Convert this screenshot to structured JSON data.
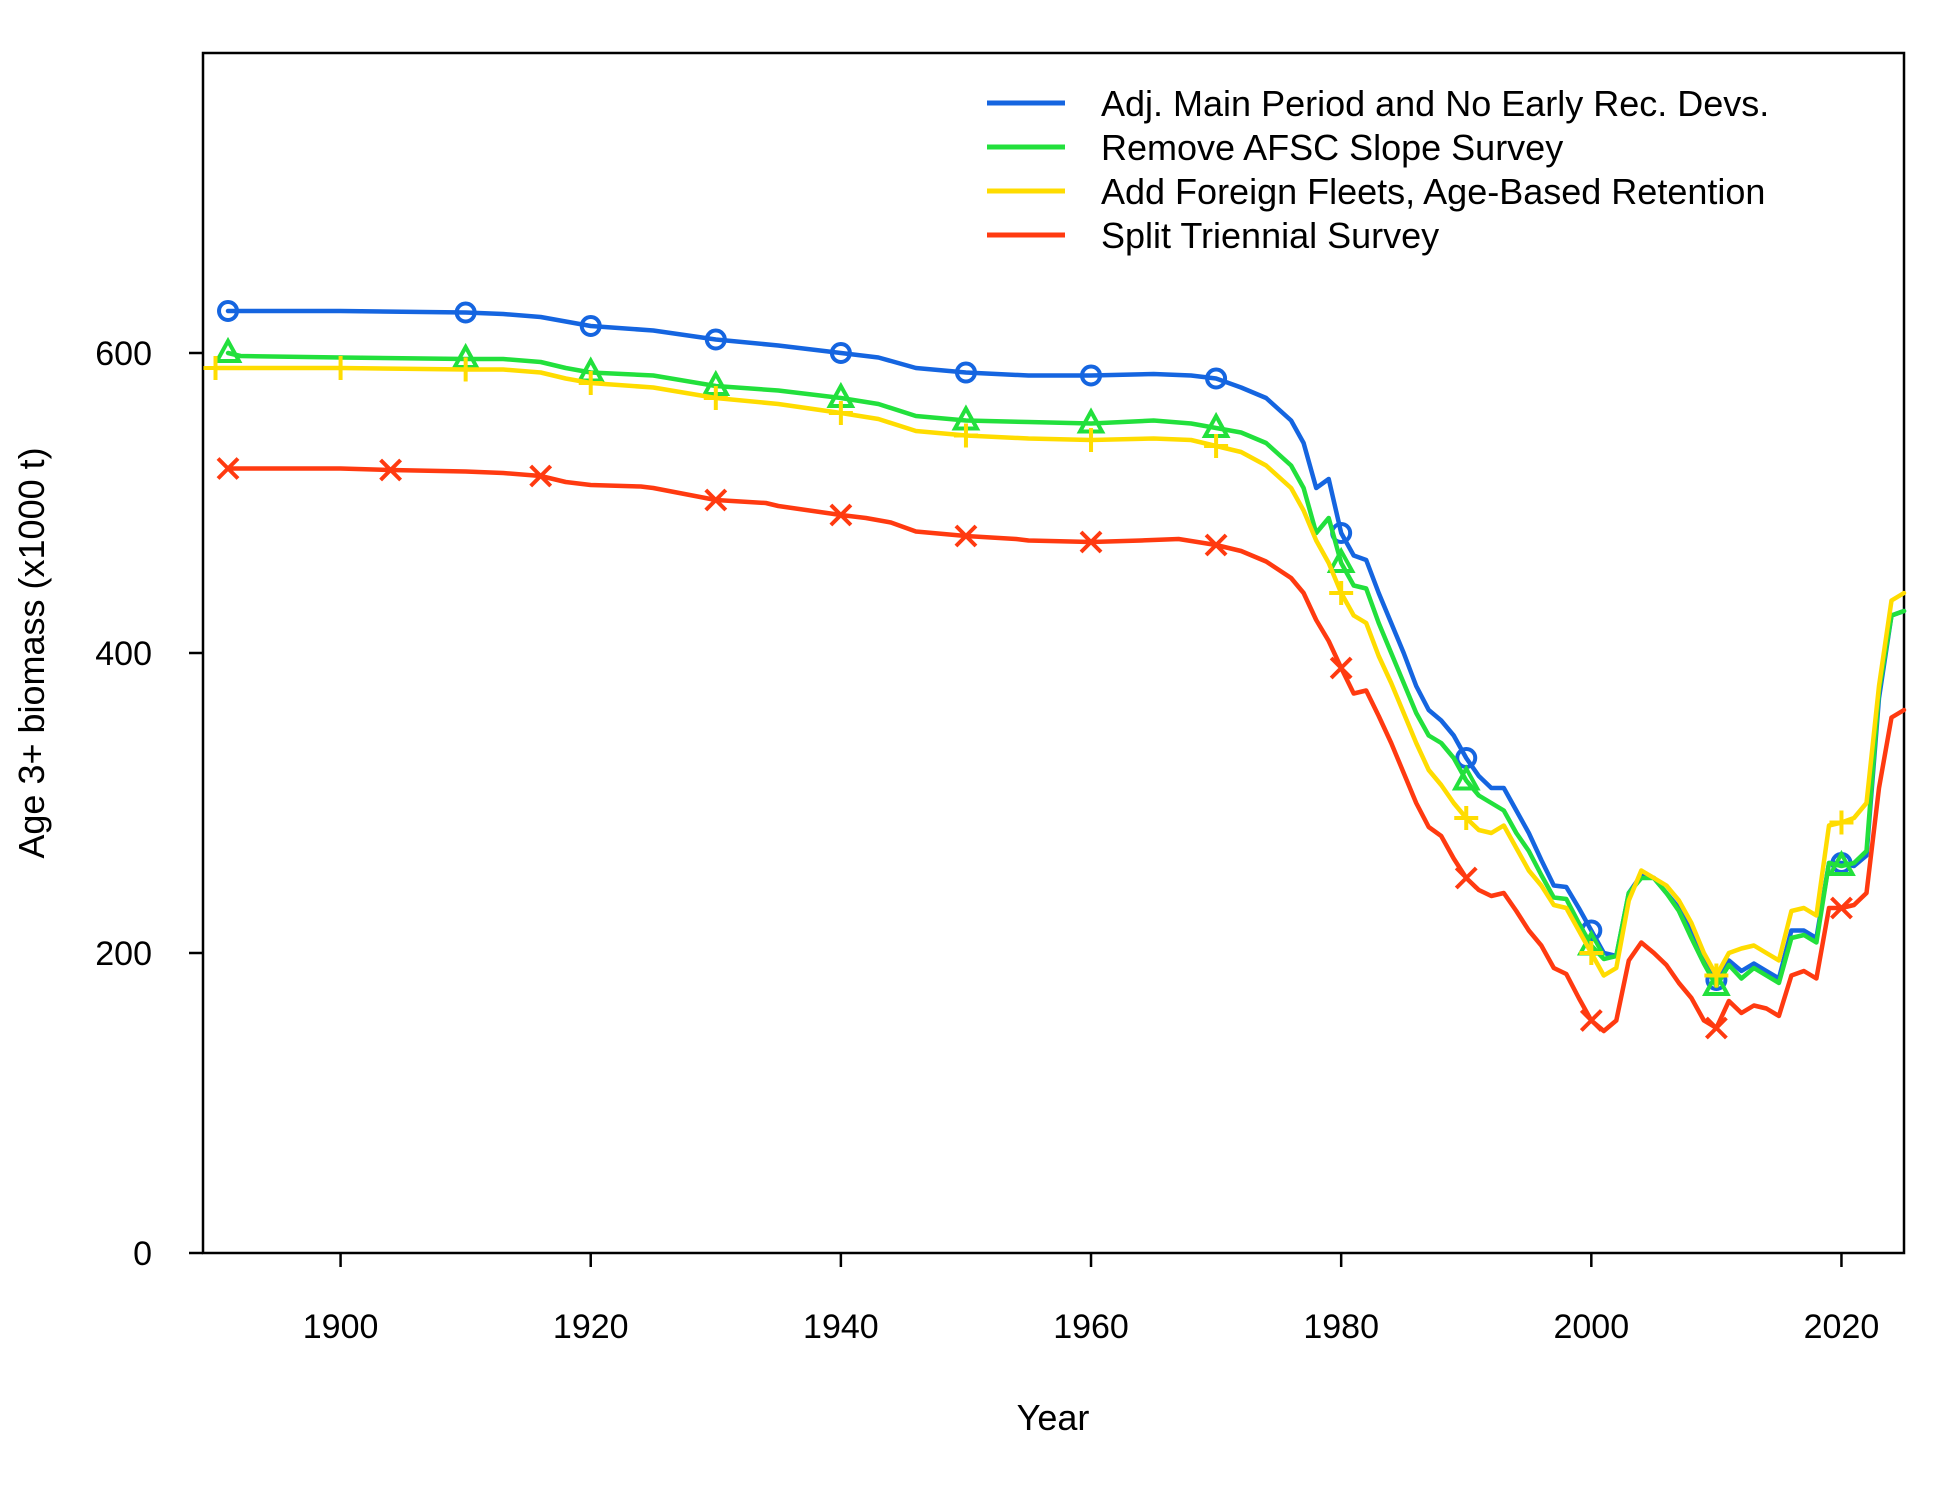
{
  "chart_data": {
    "type": "line",
    "xlabel": "Year",
    "ylabel": "Age 3+ biomass (x1000 t)",
    "xlim": [
      1889,
      2025
    ],
    "ylim": [
      0,
      800
    ],
    "x_ticks": [
      "1900",
      "1920",
      "1940",
      "1960",
      "1980",
      "2000",
      "2020"
    ],
    "y_ticks": [
      "0",
      "200",
      "400",
      "600"
    ],
    "grid": false,
    "legend_position": "top-right",
    "series": [
      {
        "name": "Adj. Main Period and No Early Rec. Devs.",
        "color": "#1565e0",
        "marker": "circle",
        "marker_every": 10,
        "points": [
          [
            1891,
            628
          ],
          [
            1900,
            628
          ],
          [
            1910,
            627
          ],
          [
            1913,
            626
          ],
          [
            1916,
            624
          ],
          [
            1918,
            621
          ],
          [
            1920,
            618
          ],
          [
            1925,
            615
          ],
          [
            1930,
            609
          ],
          [
            1935,
            605
          ],
          [
            1940,
            600
          ],
          [
            1943,
            597
          ],
          [
            1946,
            590
          ],
          [
            1950,
            587
          ],
          [
            1955,
            585
          ],
          [
            1960,
            585
          ],
          [
            1965,
            586
          ],
          [
            1968,
            585
          ],
          [
            1970,
            583
          ],
          [
            1972,
            577
          ],
          [
            1974,
            570
          ],
          [
            1976,
            555
          ],
          [
            1977,
            540
          ],
          [
            1978,
            510
          ],
          [
            1979,
            516
          ],
          [
            1980,
            480
          ],
          [
            1981,
            465
          ],
          [
            1982,
            462
          ],
          [
            1983,
            440
          ],
          [
            1984,
            420
          ],
          [
            1985,
            400
          ],
          [
            1986,
            378
          ],
          [
            1987,
            362
          ],
          [
            1988,
            355
          ],
          [
            1989,
            345
          ],
          [
            1990,
            330
          ],
          [
            1991,
            318
          ],
          [
            1992,
            310
          ],
          [
            1993,
            310
          ],
          [
            1994,
            295
          ],
          [
            1995,
            280
          ],
          [
            1996,
            262
          ],
          [
            1997,
            245
          ],
          [
            1998,
            244
          ],
          [
            1999,
            230
          ],
          [
            2000,
            215
          ],
          [
            2001,
            200
          ],
          [
            2002,
            198
          ],
          [
            2003,
            240
          ],
          [
            2004,
            252
          ],
          [
            2005,
            250
          ],
          [
            2006,
            240
          ],
          [
            2007,
            230
          ],
          [
            2008,
            215
          ],
          [
            2009,
            198
          ],
          [
            2010,
            182
          ],
          [
            2011,
            195
          ],
          [
            2012,
            188
          ],
          [
            2013,
            193
          ],
          [
            2014,
            188
          ],
          [
            2015,
            183
          ],
          [
            2016,
            215
          ],
          [
            2017,
            215
          ],
          [
            2018,
            210
          ],
          [
            2019,
            260
          ],
          [
            2020,
            260
          ],
          [
            2021,
            258
          ],
          [
            2022,
            265
          ],
          [
            2023,
            370
          ],
          [
            2024,
            425
          ],
          [
            2025,
            428
          ]
        ]
      },
      {
        "name": "Remove AFSC Slope Survey",
        "color": "#22e03c",
        "marker": "triangle",
        "marker_every": 10,
        "points": [
          [
            1891,
            600
          ],
          [
            1892,
            598
          ],
          [
            1900,
            597
          ],
          [
            1910,
            596
          ],
          [
            1913,
            596
          ],
          [
            1916,
            594
          ],
          [
            1918,
            590
          ],
          [
            1920,
            587
          ],
          [
            1925,
            585
          ],
          [
            1930,
            578
          ],
          [
            1935,
            575
          ],
          [
            1940,
            570
          ],
          [
            1943,
            566
          ],
          [
            1946,
            558
          ],
          [
            1950,
            555
          ],
          [
            1955,
            554
          ],
          [
            1960,
            553
          ],
          [
            1965,
            555
          ],
          [
            1968,
            553
          ],
          [
            1970,
            550
          ],
          [
            1972,
            547
          ],
          [
            1974,
            540
          ],
          [
            1976,
            525
          ],
          [
            1977,
            510
          ],
          [
            1978,
            480
          ],
          [
            1979,
            490
          ],
          [
            1980,
            460
          ],
          [
            1981,
            445
          ],
          [
            1982,
            443
          ],
          [
            1983,
            420
          ],
          [
            1984,
            400
          ],
          [
            1985,
            380
          ],
          [
            1986,
            360
          ],
          [
            1987,
            345
          ],
          [
            1988,
            340
          ],
          [
            1989,
            330
          ],
          [
            1990,
            315
          ],
          [
            1991,
            305
          ],
          [
            1992,
            300
          ],
          [
            1993,
            295
          ],
          [
            1994,
            280
          ],
          [
            1995,
            268
          ],
          [
            1996,
            252
          ],
          [
            1997,
            237
          ],
          [
            1998,
            236
          ],
          [
            1999,
            220
          ],
          [
            2000,
            205
          ],
          [
            2001,
            196
          ],
          [
            2002,
            198
          ],
          [
            2003,
            240
          ],
          [
            2004,
            250
          ],
          [
            2005,
            250
          ],
          [
            2006,
            240
          ],
          [
            2007,
            228
          ],
          [
            2008,
            210
          ],
          [
            2009,
            193
          ],
          [
            2010,
            178
          ],
          [
            2011,
            192
          ],
          [
            2012,
            183
          ],
          [
            2013,
            190
          ],
          [
            2014,
            185
          ],
          [
            2015,
            180
          ],
          [
            2016,
            210
          ],
          [
            2017,
            212
          ],
          [
            2018,
            207
          ],
          [
            2019,
            260
          ],
          [
            2020,
            258
          ],
          [
            2021,
            260
          ],
          [
            2022,
            268
          ],
          [
            2023,
            375
          ],
          [
            2024,
            425
          ],
          [
            2025,
            428
          ]
        ]
      },
      {
        "name": "Add Foreign Fleets, Age-Based Retention",
        "color": "#ffdc00",
        "marker": "plus",
        "marker_every": 10,
        "points": [
          [
            1890,
            590
          ],
          [
            1893,
            590
          ],
          [
            1900,
            590
          ],
          [
            1910,
            589
          ],
          [
            1913,
            589
          ],
          [
            1916,
            587
          ],
          [
            1918,
            583
          ],
          [
            1920,
            580
          ],
          [
            1925,
            577
          ],
          [
            1930,
            570
          ],
          [
            1935,
            566
          ],
          [
            1940,
            560
          ],
          [
            1943,
            556
          ],
          [
            1946,
            548
          ],
          [
            1950,
            545
          ],
          [
            1955,
            543
          ],
          [
            1960,
            542
          ],
          [
            1965,
            543
          ],
          [
            1968,
            542
          ],
          [
            1970,
            538
          ],
          [
            1972,
            534
          ],
          [
            1974,
            525
          ],
          [
            1976,
            510
          ],
          [
            1977,
            495
          ],
          [
            1978,
            475
          ],
          [
            1979,
            460
          ],
          [
            1980,
            440
          ],
          [
            1981,
            425
          ],
          [
            1982,
            420
          ],
          [
            1983,
            398
          ],
          [
            1984,
            380
          ],
          [
            1985,
            360
          ],
          [
            1986,
            340
          ],
          [
            1987,
            322
          ],
          [
            1988,
            312
          ],
          [
            1989,
            300
          ],
          [
            1990,
            290
          ],
          [
            1991,
            282
          ],
          [
            1992,
            280
          ],
          [
            1993,
            285
          ],
          [
            1994,
            270
          ],
          [
            1995,
            255
          ],
          [
            1996,
            245
          ],
          [
            1997,
            232
          ],
          [
            1998,
            230
          ],
          [
            1999,
            215
          ],
          [
            2000,
            200
          ],
          [
            2001,
            185
          ],
          [
            2002,
            190
          ],
          [
            2003,
            235
          ],
          [
            2004,
            255
          ],
          [
            2005,
            250
          ],
          [
            2006,
            245
          ],
          [
            2007,
            235
          ],
          [
            2008,
            220
          ],
          [
            2009,
            200
          ],
          [
            2010,
            185
          ],
          [
            2011,
            200
          ],
          [
            2012,
            203
          ],
          [
            2013,
            205
          ],
          [
            2014,
            200
          ],
          [
            2015,
            195
          ],
          [
            2016,
            228
          ],
          [
            2017,
            230
          ],
          [
            2018,
            225
          ],
          [
            2019,
            285
          ],
          [
            2020,
            287
          ],
          [
            2021,
            290
          ],
          [
            2022,
            300
          ],
          [
            2023,
            378
          ],
          [
            2024,
            435
          ],
          [
            2025,
            440
          ]
        ]
      },
      {
        "name": "Split Triennial Survey",
        "color": "#ff3a10",
        "marker": "cross",
        "marker_every": 10,
        "points": [
          [
            1891,
            523
          ],
          [
            1894,
            523
          ],
          [
            1900,
            523
          ],
          [
            1904,
            522
          ],
          [
            1910,
            521
          ],
          [
            1913,
            520
          ],
          [
            1916,
            518
          ],
          [
            1918,
            514
          ],
          [
            1920,
            512
          ],
          [
            1924,
            511
          ],
          [
            1925,
            510
          ],
          [
            1930,
            502
          ],
          [
            1934,
            500
          ],
          [
            1935,
            498
          ],
          [
            1940,
            492
          ],
          [
            1942,
            490
          ],
          [
            1944,
            487
          ],
          [
            1946,
            481
          ],
          [
            1950,
            478
          ],
          [
            1954,
            476
          ],
          [
            1955,
            475
          ],
          [
            1960,
            474
          ],
          [
            1964,
            475
          ],
          [
            1967,
            476
          ],
          [
            1970,
            472
          ],
          [
            1972,
            468
          ],
          [
            1974,
            461
          ],
          [
            1976,
            450
          ],
          [
            1977,
            440
          ],
          [
            1978,
            422
          ],
          [
            1979,
            408
          ],
          [
            1980,
            390
          ],
          [
            1981,
            373
          ],
          [
            1982,
            375
          ],
          [
            1983,
            358
          ],
          [
            1984,
            340
          ],
          [
            1985,
            320
          ],
          [
            1986,
            300
          ],
          [
            1987,
            284
          ],
          [
            1988,
            278
          ],
          [
            1989,
            263
          ],
          [
            1990,
            250
          ],
          [
            1991,
            242
          ],
          [
            1992,
            238
          ],
          [
            1993,
            240
          ],
          [
            1994,
            228
          ],
          [
            1995,
            215
          ],
          [
            1996,
            205
          ],
          [
            1997,
            190
          ],
          [
            1998,
            186
          ],
          [
            1999,
            170
          ],
          [
            2000,
            155
          ],
          [
            2001,
            148
          ],
          [
            2002,
            155
          ],
          [
            2003,
            195
          ],
          [
            2004,
            207
          ],
          [
            2005,
            200
          ],
          [
            2006,
            192
          ],
          [
            2007,
            180
          ],
          [
            2008,
            170
          ],
          [
            2009,
            155
          ],
          [
            2010,
            150
          ],
          [
            2011,
            168
          ],
          [
            2012,
            160
          ],
          [
            2013,
            165
          ],
          [
            2014,
            163
          ],
          [
            2015,
            158
          ],
          [
            2016,
            185
          ],
          [
            2017,
            188
          ],
          [
            2018,
            183
          ],
          [
            2019,
            230
          ],
          [
            2020,
            230
          ],
          [
            2021,
            232
          ],
          [
            2022,
            240
          ],
          [
            2023,
            310
          ],
          [
            2024,
            357
          ],
          [
            2025,
            362
          ]
        ]
      }
    ]
  }
}
